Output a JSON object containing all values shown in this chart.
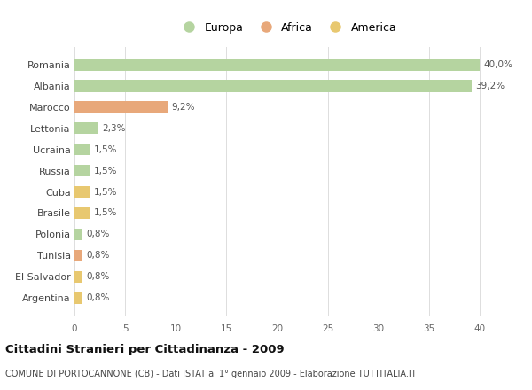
{
  "categories": [
    "Romania",
    "Albania",
    "Marocco",
    "Lettonia",
    "Ucraina",
    "Russia",
    "Cuba",
    "Brasile",
    "Polonia",
    "Tunisia",
    "El Salvador",
    "Argentina"
  ],
  "values": [
    40.0,
    39.2,
    9.2,
    2.3,
    1.5,
    1.5,
    1.5,
    1.5,
    0.8,
    0.8,
    0.8,
    0.8
  ],
  "labels": [
    "40,0%",
    "39,2%",
    "9,2%",
    "2,3%",
    "1,5%",
    "1,5%",
    "1,5%",
    "1,5%",
    "0,8%",
    "0,8%",
    "0,8%",
    "0,8%"
  ],
  "colors": [
    "#b5d4a0",
    "#b5d4a0",
    "#e8a87a",
    "#b5d4a0",
    "#b5d4a0",
    "#b5d4a0",
    "#e8c870",
    "#e8c870",
    "#b5d4a0",
    "#e8a87a",
    "#e8c870",
    "#e8c870"
  ],
  "legend_labels": [
    "Europa",
    "Africa",
    "America"
  ],
  "legend_colors": [
    "#b5d4a0",
    "#e8a87a",
    "#e8c870"
  ],
  "title": "Cittadini Stranieri per Cittadinanza - 2009",
  "subtitle": "COMUNE DI PORTOCANNONE (CB) - Dati ISTAT al 1° gennaio 2009 - Elaborazione TUTTITALIA.IT",
  "xlim": [
    0,
    42
  ],
  "xticks": [
    0,
    5,
    10,
    15,
    20,
    25,
    30,
    35,
    40
  ],
  "background_color": "#ffffff",
  "grid_color": "#dddddd",
  "bar_height": 0.55
}
